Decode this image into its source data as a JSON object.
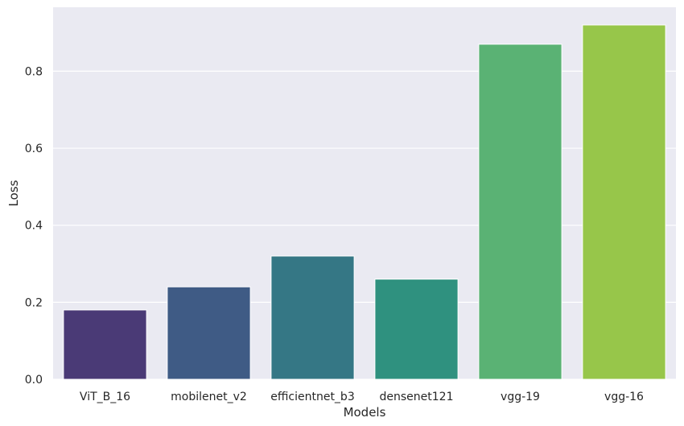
{
  "chart_data": {
    "type": "bar",
    "title": "",
    "xlabel": "Models",
    "ylabel": "Loss",
    "categories": [
      "ViT_B_16",
      "mobilenet_v2",
      "efficientnet_b3",
      "densenet121",
      "vgg-19",
      "vgg-16"
    ],
    "values": [
      0.18,
      0.24,
      0.32,
      0.26,
      0.87,
      0.92
    ],
    "colors": [
      "#4a3a76",
      "#3f5b85",
      "#357785",
      "#2f917f",
      "#5ab274",
      "#97c64a"
    ],
    "ylim": [
      0,
      0.966
    ],
    "yticks": [
      0.0,
      0.2,
      0.4,
      0.6,
      0.8
    ],
    "ytick_labels": [
      "0.0",
      "0.2",
      "0.4",
      "0.6",
      "0.8"
    ],
    "grid": true,
    "background": "#eaeaf2"
  }
}
